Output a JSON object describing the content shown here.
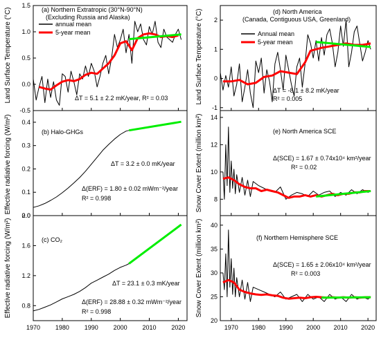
{
  "chart_data": [
    {
      "id": "a",
      "type": "line",
      "title_line1": "(a) Northern Extratropic (30°N-90°N)",
      "title_line2": "(Excluding Russia and Alaska)",
      "xlabel": "",
      "ylabel": "Land Surface Temperature (°C)",
      "xlim": [
        1970,
        2023
      ],
      "ylim": [
        -0.5,
        1.5
      ],
      "yticks": [
        -0.5,
        0.0,
        0.5,
        1.0,
        1.5
      ],
      "ytick_labels": [
        "-0.5",
        "0.0",
        "0.5",
        "1.0",
        "1.5"
      ],
      "legend": [
        "annual mean",
        "5-year mean"
      ],
      "annotation": "ΔT = 5.1 ± 2.2 mK/year, R² = 0.03",
      "series": [
        {
          "name": "annual mean",
          "color": "#000000",
          "x": [
            1970,
            1971,
            1972,
            1973,
            1974,
            1975,
            1976,
            1977,
            1978,
            1979,
            1980,
            1981,
            1982,
            1983,
            1984,
            1985,
            1986,
            1987,
            1988,
            1989,
            1990,
            1991,
            1992,
            1993,
            1994,
            1995,
            1996,
            1997,
            1998,
            1999,
            2000,
            2001,
            2002,
            2003,
            2004,
            2005,
            2006,
            2007,
            2008,
            2009,
            2010,
            2011,
            2012,
            2013,
            2014,
            2015,
            2016,
            2017,
            2018,
            2019,
            2020,
            2021
          ],
          "y": [
            0.1,
            -0.3,
            -0.05,
            0.15,
            -0.35,
            0.1,
            -0.25,
            0.05,
            -0.3,
            -0.4,
            0.2,
            0.15,
            -0.15,
            0.25,
            0.05,
            -0.2,
            0.2,
            0.1,
            0.35,
            0.15,
            0.4,
            0.25,
            -0.05,
            0.15,
            0.4,
            0.55,
            0.2,
            0.5,
            0.95,
            0.7,
            0.85,
            1.05,
            0.6,
            0.95,
            0.4,
            1.2,
            1.0,
            1.15,
            0.85,
            0.75,
            1.1,
            0.95,
            1.2,
            0.8,
            0.7,
            1.05,
            0.9,
            0.85,
            0.8,
            0.95,
            1.05,
            0.85
          ]
        },
        {
          "name": "5-year mean",
          "color": "#ff0000",
          "x": [
            1972,
            1974,
            1976,
            1978,
            1980,
            1982,
            1984,
            1986,
            1988,
            1990,
            1992,
            1994,
            1996,
            1998,
            2000,
            2002,
            2004,
            2006,
            2008,
            2010,
            2012,
            2014,
            2016,
            2018,
            2020
          ],
          "y": [
            -0.05,
            -0.08,
            -0.1,
            -0.02,
            0.05,
            0.08,
            0.06,
            0.1,
            0.18,
            0.22,
            0.2,
            0.3,
            0.4,
            0.55,
            0.78,
            0.82,
            0.65,
            0.88,
            0.95,
            0.97,
            0.95,
            0.9,
            0.92,
            0.9,
            0.93
          ]
        },
        {
          "name": "",
          "color": "#00ee00",
          "x": [
            2003,
            2021
          ],
          "y": [
            0.86,
            0.95
          ]
        }
      ]
    },
    {
      "id": "b",
      "type": "line",
      "title": "(b) Halo-GHGs",
      "xlabel": "",
      "ylabel": "Effective radiative forcing (W/m²)",
      "xlim": [
        1970,
        2023
      ],
      "ylim": [
        0.0,
        0.45
      ],
      "yticks": [
        0.0,
        0.1,
        0.2,
        0.3,
        0.4
      ],
      "ytick_labels": [
        "0.0",
        "0.1",
        "0.2",
        "0.3",
        "0.4"
      ],
      "annotation_1": "ΔT = 3.2 ± 0.0 mK/year",
      "annotation_2": "Δ(ERF) = 1.80 ± 0.02 mWm⁻²/year",
      "annotation_3": "R² = 0.998",
      "series": [
        {
          "name": "",
          "color": "#000000",
          "x": [
            1970,
            1972,
            1974,
            1976,
            1978,
            1980,
            1982,
            1984,
            1986,
            1988,
            1990,
            1992,
            1994,
            1996,
            1998,
            2000,
            2002,
            2003
          ],
          "y": [
            0.035,
            0.042,
            0.052,
            0.065,
            0.08,
            0.098,
            0.118,
            0.14,
            0.163,
            0.19,
            0.22,
            0.25,
            0.28,
            0.305,
            0.328,
            0.348,
            0.362,
            0.365
          ]
        },
        {
          "name": "",
          "color": "#00ee00",
          "x": [
            2003,
            2021
          ],
          "y": [
            0.365,
            0.402
          ]
        }
      ]
    },
    {
      "id": "c",
      "type": "line",
      "title": "(c) CO₂",
      "xlabel": "",
      "ylabel": "Effective radiative forcing (W/m²)",
      "xlim": [
        1970,
        2023
      ],
      "ylim": [
        0.6,
        2.0
      ],
      "yticks": [
        0.8,
        1.2,
        1.6,
        2.0
      ],
      "ytick_labels": [
        "0.8",
        "1.2",
        "1.6",
        "2.0"
      ],
      "xticks": [
        1970,
        1980,
        1990,
        2000,
        2010,
        2020
      ],
      "xtick_labels": [
        "1970",
        "1980",
        "1990",
        "2000",
        "2010",
        "2020"
      ],
      "annotation_1": "ΔT = 23.1 ± 0.3 mK/year",
      "annotation_2": "Δ(ERF) = 28.88 ± 0.32 mWm⁻²/year",
      "annotation_3": "R² = 0.998",
      "series": [
        {
          "name": "",
          "color": "#000000",
          "x": [
            1970,
            1972,
            1974,
            1976,
            1978,
            1980,
            1982,
            1984,
            1986,
            1988,
            1990,
            1992,
            1994,
            1996,
            1998,
            2000,
            2002,
            2003
          ],
          "y": [
            0.73,
            0.75,
            0.78,
            0.81,
            0.85,
            0.89,
            0.92,
            0.95,
            0.99,
            1.04,
            1.1,
            1.14,
            1.18,
            1.22,
            1.27,
            1.31,
            1.34,
            1.36
          ]
        },
        {
          "name": "",
          "color": "#00ee00",
          "x": [
            2003,
            2021
          ],
          "y": [
            1.36,
            1.88
          ]
        }
      ]
    },
    {
      "id": "d",
      "type": "line",
      "title_line1": "(d) North America",
      "title_line2": "(Canada, Contiguous USA, Greenland)",
      "xlabel": "",
      "ylabel": "Land Surface Temperature (°C)",
      "xlim": [
        1966,
        2023
      ],
      "ylim": [
        -1.1,
        2.5
      ],
      "yticks": [
        -1,
        0,
        1,
        2
      ],
      "ytick_labels": [
        "-1",
        "0",
        "1",
        "2"
      ],
      "legend": [
        "Annual mean",
        "5-year mean"
      ],
      "annotation_1": "ΔT = -8.1 ± 8.2 mK/year",
      "annotation_2": "R² = 0.005",
      "series": [
        {
          "name": "Annual mean",
          "color": "#000000",
          "x": [
            1966,
            1967,
            1968,
            1969,
            1970,
            1971,
            1972,
            1973,
            1974,
            1975,
            1976,
            1977,
            1978,
            1979,
            1980,
            1981,
            1982,
            1983,
            1984,
            1985,
            1986,
            1987,
            1988,
            1989,
            1990,
            1991,
            1992,
            1993,
            1994,
            1995,
            1996,
            1997,
            1998,
            1999,
            2000,
            2001,
            2002,
            2003,
            2004,
            2005,
            2006,
            2007,
            2008,
            2009,
            2010,
            2011,
            2012,
            2013,
            2014,
            2015,
            2016,
            2017,
            2018,
            2019,
            2020,
            2021
          ],
          "y": [
            0.2,
            -0.4,
            0.1,
            -0.3,
            0.4,
            -0.6,
            -0.2,
            0.5,
            -0.8,
            -0.3,
            0.3,
            -0.5,
            -1.0,
            0.6,
            0.2,
            0.7,
            -0.5,
            0.3,
            -0.1,
            -0.8,
            0.5,
            0.9,
            0.3,
            -0.4,
            0.8,
            0.3,
            -0.2,
            -0.6,
            0.4,
            0.7,
            -0.3,
            0.5,
            1.5,
            1.2,
            0.7,
            1.3,
            0.6,
            1.4,
            0.8,
            1.5,
            1.7,
            1.2,
            0.4,
            0.9,
            1.8,
            1.1,
            2.0,
            0.4,
            0.9,
            1.6,
            1.8,
            1.2,
            0.6,
            0.9,
            1.3,
            1.0
          ]
        },
        {
          "name": "5-year mean",
          "color": "#ff0000",
          "x": [
            1967,
            1970,
            1973,
            1976,
            1979,
            1982,
            1985,
            1988,
            1991,
            1994,
            1997,
            1999,
            2001,
            2003,
            2006,
            2009,
            2012,
            2015,
            2018,
            2021
          ],
          "y": [
            -0.1,
            -0.1,
            -0.05,
            -0.2,
            -0.15,
            0.05,
            0.1,
            0.25,
            0.2,
            0.15,
            0.55,
            0.95,
            1.0,
            1.05,
            1.1,
            1.15,
            1.2,
            1.15,
            1.15,
            1.2
          ]
        },
        {
          "name": "",
          "color": "#00ee00",
          "x": [
            2001,
            2021
          ],
          "y": [
            1.25,
            1.08
          ]
        }
      ]
    },
    {
      "id": "e",
      "type": "line",
      "title": "(e) North America SCE",
      "xlabel": "",
      "ylabel": "Snow Cover Extent (million km²)",
      "xlim": [
        1966,
        2023
      ],
      "ylim": [
        6.8,
        14.5
      ],
      "yticks": [
        8,
        10,
        12,
        14
      ],
      "ytick_labels": [
        "8",
        "10",
        "12",
        "14"
      ],
      "annotation_1": "Δ(SCE) = 1.67 ± 0.74x10⁴ km²/year",
      "annotation_2": "R² = 0.02",
      "series": [
        {
          "name": "",
          "color": "#000000",
          "x": [
            1967,
            1967.5,
            1968,
            1968.5,
            1969,
            1969.5,
            1970,
            1970.5,
            1971,
            1971.5,
            1972,
            1973,
            1974,
            1975,
            1976,
            1977,
            1978,
            1980,
            1982,
            1984,
            1986,
            1988,
            1990,
            1992,
            1994,
            1996,
            1998,
            2000,
            2002,
            2004,
            2006,
            2008,
            2010,
            2012,
            2014,
            2016,
            2018,
            2020,
            2021
          ],
          "y": [
            10.0,
            8.0,
            12.0,
            9.0,
            13.3,
            8.5,
            10.8,
            8.8,
            10.2,
            8.4,
            9.8,
            8.5,
            9.6,
            8.3,
            9.4,
            8.2,
            9.3,
            9.0,
            8.8,
            8.6,
            8.5,
            8.9,
            8.0,
            8.3,
            8.5,
            8.4,
            8.2,
            8.6,
            8.3,
            8.5,
            8.6,
            8.2,
            8.5,
            8.3,
            8.7,
            8.4,
            8.7,
            8.5,
            8.6
          ]
        },
        {
          "name": "",
          "color": "#ff0000",
          "x": [
            1967,
            1969,
            1971,
            1973,
            1975,
            1977,
            1979,
            1981,
            1983,
            1985,
            1987,
            1989,
            1991,
            1993,
            1995,
            1997,
            1999,
            2001,
            2003,
            2005,
            2007,
            2009,
            2011,
            2013,
            2015,
            2017,
            2019,
            2021
          ],
          "y": [
            9.5,
            9.6,
            9.4,
            9.1,
            8.9,
            8.8,
            8.8,
            8.6,
            8.7,
            8.6,
            8.5,
            8.3,
            8.1,
            8.2,
            8.2,
            8.3,
            8.2,
            8.3,
            8.2,
            8.3,
            8.4,
            8.3,
            8.4,
            8.4,
            8.5,
            8.5,
            8.6,
            8.6
          ]
        },
        {
          "name": "",
          "color": "#00ee00",
          "x": [
            2001,
            2021
          ],
          "y": [
            8.2,
            8.6
          ]
        }
      ]
    },
    {
      "id": "f",
      "type": "line",
      "title": "(f) Northern Hemisphere SCE",
      "xlabel": "",
      "ylabel": "Snow Cover Extent (million km²)",
      "xlim": [
        1966,
        2023
      ],
      "ylim": [
        20,
        42
      ],
      "yticks": [
        20,
        25,
        30,
        35,
        40
      ],
      "ytick_labels": [
        "20",
        "25",
        "30",
        "35",
        "40"
      ],
      "xticks": [
        1970,
        1980,
        1990,
        2000,
        2010,
        2020
      ],
      "xtick_labels": [
        "1970",
        "1980",
        "1990",
        "2000",
        "2010",
        "2020"
      ],
      "annotation_1": "Δ(SCE) = 1.65 ± 2.06x10⁴ km²/year",
      "annotation_2": "R² = 0.003",
      "series": [
        {
          "name": "",
          "color": "#000000",
          "x": [
            1967,
            1967.5,
            1968,
            1968.5,
            1969,
            1969.5,
            1970,
            1970.5,
            1971,
            1971.5,
            1972,
            1973,
            1974,
            1975,
            1976,
            1977,
            1978,
            1980,
            1982,
            1984,
            1986,
            1988,
            1990,
            1992,
            1994,
            1996,
            1998,
            2000,
            2002,
            2004,
            2006,
            2008,
            2010,
            2012,
            2014,
            2016,
            2018,
            2020,
            2021
          ],
          "y": [
            30.0,
            26.5,
            34.0,
            25.0,
            39.0,
            27.0,
            33.0,
            25.5,
            31.0,
            25.0,
            29.0,
            25.0,
            28.5,
            24.5,
            28.0,
            24.0,
            27.0,
            26.5,
            26.0,
            25.5,
            25.0,
            26.0,
            24.5,
            25.0,
            25.5,
            24.0,
            25.5,
            24.5,
            25.0,
            24.0,
            25.5,
            24.5,
            25.0,
            24.0,
            25.5,
            24.5,
            25.0,
            24.5,
            25.0
          ]
        },
        {
          "name": "",
          "color": "#ff0000",
          "x": [
            1967,
            1969,
            1971,
            1973,
            1975,
            1977,
            1979,
            1981,
            1983,
            1985,
            1987,
            1989,
            1991,
            1993,
            1995,
            1997,
            1999,
            2001,
            2003,
            2005,
            2007,
            2009,
            2011,
            2013,
            2015,
            2017,
            2019,
            2021
          ],
          "y": [
            28.0,
            28.5,
            28.0,
            26.5,
            26.0,
            25.7,
            25.5,
            25.4,
            25.5,
            25.3,
            25.2,
            24.8,
            24.6,
            24.7,
            24.8,
            24.7,
            24.9,
            25.0,
            24.9,
            24.8,
            24.9,
            24.8,
            24.9,
            24.8,
            24.9,
            24.8,
            24.9,
            24.9
          ]
        },
        {
          "name": "",
          "color": "#00ee00",
          "x": [
            2003,
            2021
          ],
          "y": [
            24.8,
            24.9
          ]
        }
      ]
    }
  ]
}
